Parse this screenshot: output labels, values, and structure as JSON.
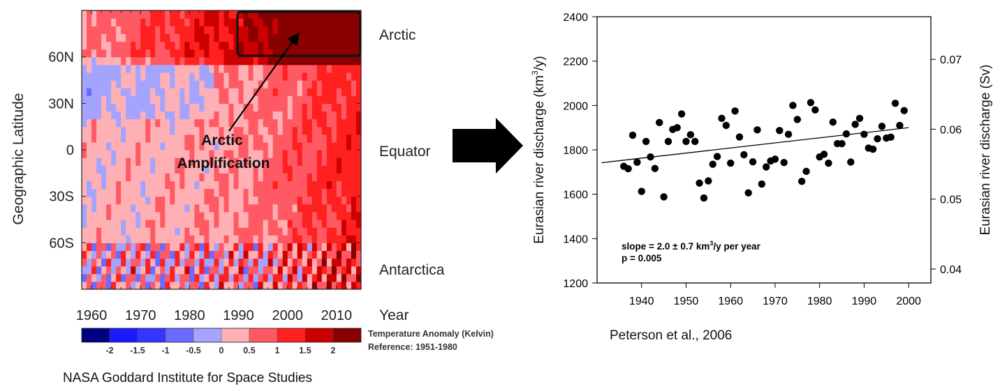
{
  "colors": {
    "heat_scale": [
      "#000080",
      "#1a1aff",
      "#3535ff",
      "#6a6aff",
      "#a4a4ff",
      "#ffb0b4",
      "#ff5a64",
      "#ff2020",
      "#cc0000",
      "#880000"
    ],
    "equator_pink": "#ffb5b8",
    "accent_black": "#000000"
  },
  "left_panel": {
    "y_axis_title": "Geographic Latitude",
    "year_label": "Year",
    "region_labels": {
      "arctic": "Arctic",
      "equator": "Equator",
      "antarctica": "Antarctica"
    },
    "annotation": {
      "line1": "Arctic",
      "line2": "Amplification"
    },
    "colorbar": {
      "title": "Temperature Anomaly (Kelvin)",
      "reference": "Reference: 1951-1980",
      "ticks": [
        "-2",
        "-1.5",
        "-1",
        "-0.5",
        "0",
        "0.5",
        "1",
        "1.5",
        "2"
      ]
    },
    "credit": "NASA Goddard Institute for Space Studies"
  },
  "arrow": {
    "icon": "right-arrow-icon"
  },
  "chart_data": [
    {
      "type": "heatmap",
      "title": "",
      "xlabel": "Year",
      "ylabel": "Geographic Latitude",
      "x_range": [
        1958,
        2015
      ],
      "y_range": [
        -90,
        90
      ],
      "x_ticks": [
        1960,
        1970,
        1980,
        1990,
        2000,
        2010
      ],
      "y_ticks": [
        {
          "value": 60,
          "label": "60N"
        },
        {
          "value": 30,
          "label": "30N"
        },
        {
          "value": 0,
          "label": "0"
        },
        {
          "value": -30,
          "label": "30S"
        },
        {
          "value": -60,
          "label": "60S"
        }
      ],
      "color_levels": [
        -2,
        -1.5,
        -1,
        -0.5,
        0,
        0.5,
        1,
        1.5,
        2
      ],
      "highlight": {
        "label": "Arctic",
        "x_range": [
          1990,
          2015
        ],
        "y_range": [
          64,
          90
        ]
      }
    },
    {
      "type": "scatter",
      "title": "",
      "xlabel": "",
      "ylabel": "Eurasian river discharge (km3/y)",
      "ylabel_parts": [
        "Eurasian river discharge (km",
        "3",
        "/y)"
      ],
      "y2label": "Eurasian river discharge (Sv)",
      "xlim": [
        1930,
        2005
      ],
      "ylim": [
        1200,
        2400
      ],
      "y2lim": [
        0.038,
        0.0761
      ],
      "x_ticks": [
        1940,
        1950,
        1960,
        1970,
        1980,
        1990,
        2000
      ],
      "y_ticks": [
        1200,
        1400,
        1600,
        1800,
        2000,
        2200,
        2400
      ],
      "y2_ticks": [
        0.04,
        0.05,
        0.06,
        0.07
      ],
      "annotation_line1_parts": [
        "slope = 2.0 ± 0.7 km",
        "3",
        "/y per year"
      ],
      "annotation_line2": "p = 0.005",
      "trend_line": {
        "x": [
          1931,
          2000
        ],
        "y": [
          1742,
          1900
        ]
      },
      "points": [
        [
          1936,
          1726
        ],
        [
          1937,
          1715
        ],
        [
          1938,
          1866
        ],
        [
          1939,
          1744
        ],
        [
          1940,
          1613
        ],
        [
          1941,
          1838
        ],
        [
          1942,
          1768
        ],
        [
          1943,
          1716
        ],
        [
          1944,
          1923
        ],
        [
          1945,
          1588
        ],
        [
          1946,
          1838
        ],
        [
          1947,
          1892
        ],
        [
          1948,
          1900
        ],
        [
          1949,
          1962
        ],
        [
          1950,
          1838
        ],
        [
          1951,
          1868
        ],
        [
          1952,
          1838
        ],
        [
          1953,
          1650
        ],
        [
          1954,
          1583
        ],
        [
          1955,
          1660
        ],
        [
          1956,
          1735
        ],
        [
          1957,
          1770
        ],
        [
          1958,
          1942
        ],
        [
          1959,
          1910
        ],
        [
          1960,
          1740
        ],
        [
          1961,
          1975
        ],
        [
          1962,
          1858
        ],
        [
          1963,
          1778
        ],
        [
          1964,
          1606
        ],
        [
          1965,
          1746
        ],
        [
          1966,
          1890
        ],
        [
          1967,
          1646
        ],
        [
          1968,
          1723
        ],
        [
          1969,
          1750
        ],
        [
          1970,
          1758
        ],
        [
          1971,
          1887
        ],
        [
          1972,
          1743
        ],
        [
          1973,
          1870
        ],
        [
          1974,
          2000
        ],
        [
          1975,
          1937
        ],
        [
          1976,
          1658
        ],
        [
          1977,
          1703
        ],
        [
          1978,
          2013
        ],
        [
          1979,
          1980
        ],
        [
          1980,
          1768
        ],
        [
          1981,
          1780
        ],
        [
          1982,
          1740
        ],
        [
          1983,
          1925
        ],
        [
          1984,
          1828
        ],
        [
          1985,
          1828
        ],
        [
          1986,
          1872
        ],
        [
          1987,
          1745
        ],
        [
          1988,
          1915
        ],
        [
          1989,
          1942
        ],
        [
          1990,
          1870
        ],
        [
          1991,
          1808
        ],
        [
          1992,
          1803
        ],
        [
          1993,
          1850
        ],
        [
          1994,
          1906
        ],
        [
          1995,
          1853
        ],
        [
          1996,
          1857
        ],
        [
          1997,
          2010
        ],
        [
          1998,
          1910
        ],
        [
          1999,
          1977
        ]
      ]
    }
  ],
  "right_panel": {
    "credit": "Peterson et al., 2006"
  }
}
